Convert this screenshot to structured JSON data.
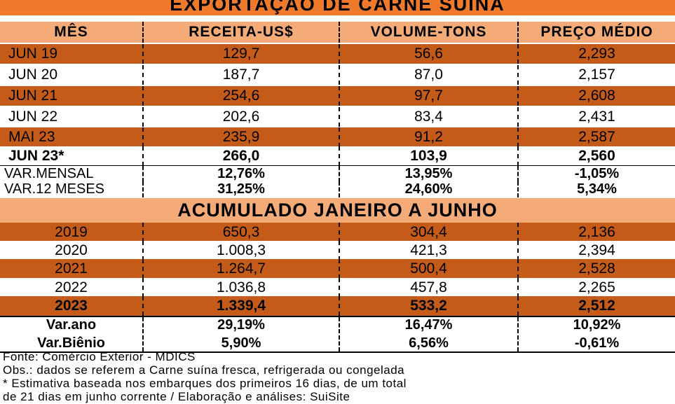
{
  "title": "EXPORTAÇÃO DE CARNE SUÍNA",
  "headers": [
    "MÊS",
    "RECEITA-US$",
    "VOLUME-TONS",
    "PREÇO MÉDIO"
  ],
  "monthly_rows": [
    [
      "JUN 19",
      "129,7",
      "56,6",
      "2,293"
    ],
    [
      "JUN 20",
      "187,7",
      "87,0",
      "2,157"
    ],
    [
      "JUN 21",
      "254,6",
      "97,7",
      "2,608"
    ],
    [
      "JUN 22",
      "202,6",
      "83,4",
      "2,431"
    ],
    [
      "MAI 23",
      "235,9",
      "91,2",
      "2,587"
    ],
    [
      "JUN 23*",
      "266,0",
      "103,9",
      "2,560"
    ]
  ],
  "monthly_var": [
    [
      "VAR.MENSAL",
      "12,76%",
      "13,95%",
      "-1,05%"
    ],
    [
      "VAR.12 MESES",
      "31,25%",
      "24,60%",
      "5,34%"
    ]
  ],
  "section_title": "ACUMULADO JANEIRO A JUNHO",
  "accum_rows": [
    [
      "2019",
      "650,3",
      "304,4",
      "2,136"
    ],
    [
      "2020",
      "1.008,3",
      "421,3",
      "2,394"
    ],
    [
      "2021",
      "1.264,7",
      "500,4",
      "2,528"
    ],
    [
      "2022",
      "1.036,8",
      "457,8",
      "2,265"
    ],
    [
      "2023",
      "1.339,4",
      "533,2",
      "2,512"
    ]
  ],
  "accum_var": [
    [
      "Var.ano",
      "29,19%",
      "16,47%",
      "10,92%"
    ],
    [
      "Var.Biênio",
      "5,90%",
      "6,56%",
      "-0,61%"
    ]
  ],
  "footer": {
    "source": "Fonte: Comércio Exterior - MDICS",
    "obs": "Obs.: dados se referem a Carne suína fresca, refrigerada ou congelada",
    "note1": "* Estimativa baseada nos embarques dos primeiros 16 dias, de um total",
    "note2": "de 21 dias em junho corrente      /      Elaboração e análises: SuiSite"
  }
}
